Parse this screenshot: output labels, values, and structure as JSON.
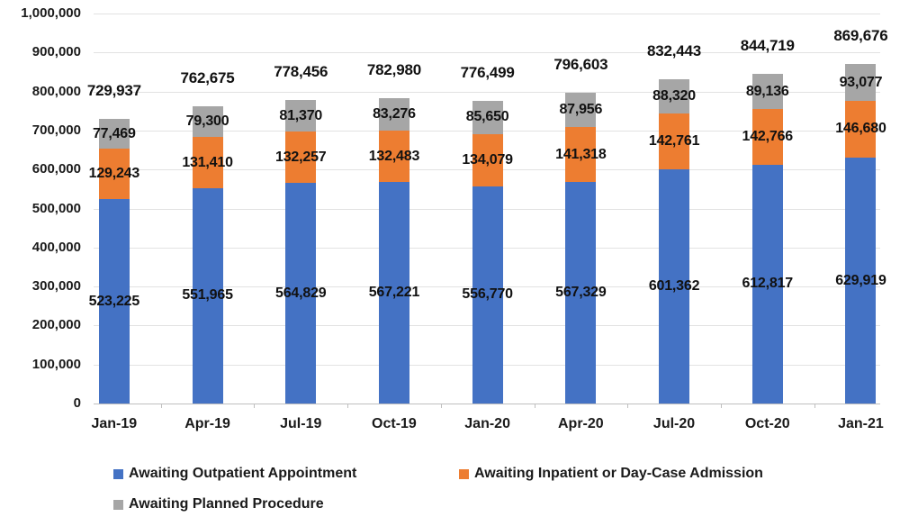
{
  "chart_data": {
    "type": "bar",
    "stacked": true,
    "title": "",
    "xlabel": "",
    "ylabel": "",
    "grid": true,
    "legend_position": "bottom",
    "categories": [
      "Jan-19",
      "Apr-19",
      "Jul-19",
      "Oct-19",
      "Jan-20",
      "Apr-20",
      "Jul-20",
      "Oct-20",
      "Jan-21"
    ],
    "series": [
      {
        "name": "Awaiting Outpatient Appointment",
        "color": "#4472C4",
        "values": [
          523225,
          551965,
          564829,
          567221,
          556770,
          567329,
          601362,
          612817,
          629919
        ]
      },
      {
        "name": "Awaiting Inpatient or Day-Case Admission",
        "color": "#ED7D31",
        "values": [
          129243,
          131410,
          132257,
          132483,
          134079,
          141318,
          142761,
          142766,
          146680
        ]
      },
      {
        "name": "Awaiting Planned Procedure",
        "color": "#A6A6A6",
        "values": [
          77469,
          79300,
          81370,
          83276,
          85650,
          87956,
          88320,
          89136,
          93077
        ]
      }
    ],
    "totals": [
      729937,
      762675,
      778456,
      782980,
      776499,
      796603,
      832443,
      844719,
      869676
    ],
    "y_axis": {
      "min": 0,
      "max": 1000000,
      "step": 100000,
      "tick_labels": [
        "0",
        "100,000",
        "200,000",
        "300,000",
        "400,000",
        "500,000",
        "600,000",
        "700,000",
        "800,000",
        "900,000",
        "1,000,000"
      ]
    },
    "colors": {
      "gridline": "#E2E2E2",
      "axis": "#BFBFBF",
      "label_text": "#111111"
    }
  }
}
